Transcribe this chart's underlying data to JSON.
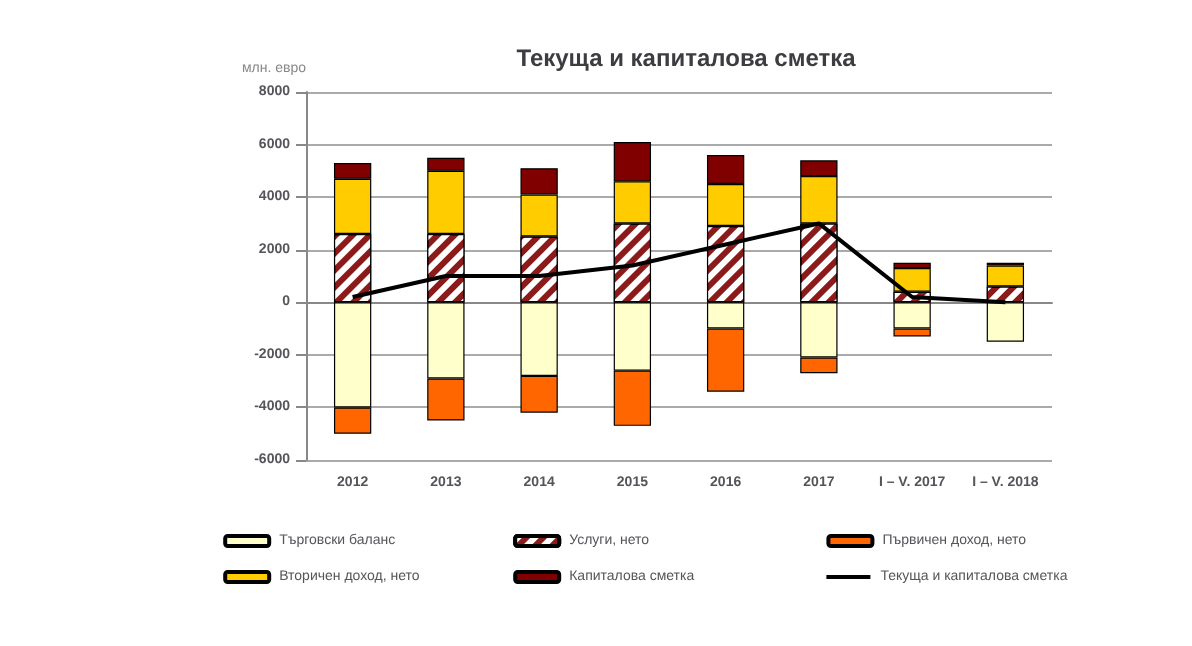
{
  "chart_data": {
    "type": "bar",
    "stacked": true,
    "title": "Текуща и капиталова сметка",
    "ylabel": "млн. евро",
    "categories": [
      "2012",
      "2013",
      "2014",
      "2015",
      "2016",
      "2017",
      "I – V. 2017",
      "I – V. 2018"
    ],
    "series": [
      {
        "name": "Търговски баланс",
        "color": "#ffffcc",
        "values": [
          -4000,
          -2900,
          -2800,
          -2600,
          -1000,
          -2100,
          -1000,
          -1500
        ]
      },
      {
        "name": "Услуги, нето",
        "color": "#8b1a1a",
        "values": [
          2600,
          2600,
          2500,
          3000,
          2900,
          3000,
          400,
          600
        ]
      },
      {
        "name": "Първичен доход, нето",
        "color": "#ff6600",
        "values": [
          -1000,
          -1600,
          -1400,
          -2100,
          -2400,
          -600,
          -300,
          null
        ]
      },
      {
        "name": "Вторичен доход, нето",
        "color": "#ffcc00",
        "values": [
          2100,
          2400,
          1600,
          1600,
          1600,
          1800,
          900,
          800
        ]
      },
      {
        "name": "Капиталова сметка",
        "color": "#800000",
        "values": [
          600,
          500,
          1000,
          1500,
          1100,
          600,
          200,
          100
        ]
      },
      {
        "name": "Текуща и капиталова сметка",
        "type": "line",
        "color": "#000000",
        "values": [
          200,
          1000,
          1000,
          1400,
          2200,
          3000,
          200,
          0
        ]
      }
    ],
    "ylim": [
      -6000,
      8000
    ],
    "yticks": [
      -6000,
      -4000,
      -2000,
      0,
      2000,
      4000,
      6000,
      8000
    ],
    "grid": "y",
    "legend": "bottom",
    "marker": "none"
  }
}
